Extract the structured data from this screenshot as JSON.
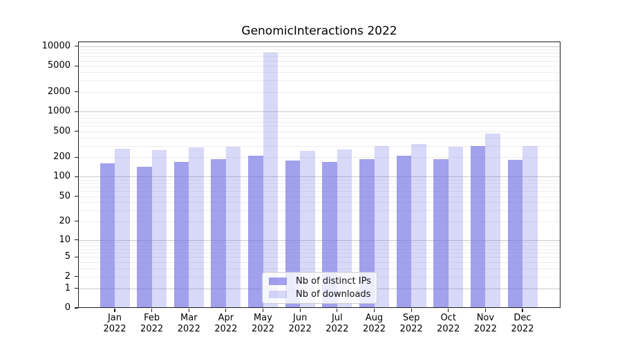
{
  "title": "GenomicInteractions 2022",
  "chart_data": {
    "type": "bar",
    "title": "GenomicInteractions 2022",
    "categories": [
      "Jan 2022",
      "Feb 2022",
      "Mar 2022",
      "Apr 2022",
      "May 2022",
      "Jun 2022",
      "Jul 2022",
      "Aug 2022",
      "Sep 2022",
      "Oct 2022",
      "Nov 2022",
      "Dec 2022"
    ],
    "series": [
      {
        "name": "Nb of distinct IPs",
        "values": [
          160,
          141,
          171,
          187,
          209,
          176,
          168,
          185,
          210,
          188,
          296,
          181
        ]
      },
      {
        "name": "Nb of downloads",
        "values": [
          268,
          255,
          280,
          289,
          7870,
          253,
          266,
          300,
          321,
          291,
          463,
          297
        ]
      }
    ],
    "y_ticks": [
      0,
      1,
      2,
      5,
      10,
      20,
      50,
      100,
      200,
      500,
      1000,
      2000,
      5000,
      10000
    ],
    "ylim": [
      0,
      10000
    ],
    "y_scale": "log1p",
    "xlabel": "",
    "ylabel": "",
    "grid": true,
    "legend_position": "lower-center"
  },
  "colors": {
    "ips_bar": "rgba(112,112,228,0.66)",
    "downloads_bar": "rgba(112,112,228,0.27)",
    "grid_major": "#c8c8c8",
    "grid_minor": "#ededed",
    "axis": "#1c1c1c",
    "text": "#000000"
  }
}
